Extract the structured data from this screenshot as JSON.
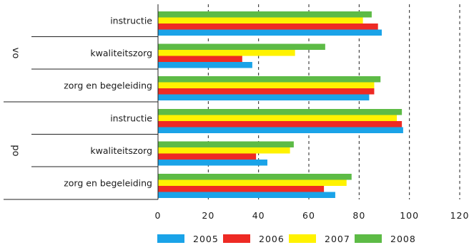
{
  "chart_data": {
    "type": "bar",
    "orientation": "horizontal",
    "title": "",
    "xlabel": "",
    "ylabel": "",
    "xlim": [
      0,
      120
    ],
    "xticks": [
      0,
      20,
      40,
      60,
      80,
      100,
      120
    ],
    "grid": "vertical dashed",
    "legend": "bottom",
    "groups": [
      {
        "label": "vo",
        "categories": [
          {
            "label": "instructie",
            "values": [
              89,
              87.5,
              81.5,
              85
            ]
          },
          {
            "label": "kwaliteitszorg",
            "values": [
              37.5,
              33.5,
              54.5,
              66.5
            ]
          },
          {
            "label": "zorg en begeleiding",
            "values": [
              84,
              86,
              86,
              88.5
            ]
          }
        ]
      },
      {
        "label": "po",
        "categories": [
          {
            "label": "instructie",
            "values": [
              97.5,
              97,
              95,
              97
            ]
          },
          {
            "label": "kwaliteitszorg",
            "values": [
              43.5,
              39,
              52.5,
              54
            ]
          },
          {
            "label": "zorg en begeleiding",
            "values": [
              70.5,
              66,
              75,
              77
            ]
          }
        ]
      }
    ],
    "series": [
      {
        "name": "2005",
        "color": "#1aa3e8"
      },
      {
        "name": "2006",
        "color": "#ee2a24"
      },
      {
        "name": "2007",
        "color": "#fff200"
      },
      {
        "name": "2008",
        "color": "#5dbb46"
      }
    ]
  }
}
